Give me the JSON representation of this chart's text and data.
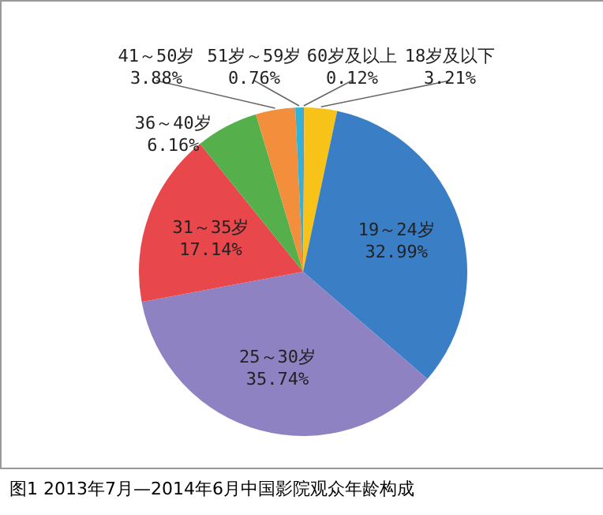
{
  "chart_data": {
    "type": "pie",
    "title": "图1 2013年7月—2014年6月中国影院观众年龄构成",
    "categories": [
      "60岁及以上",
      "18岁及以下",
      "19～24岁",
      "25～30岁",
      "31～35岁",
      "36～40岁",
      "41～50岁",
      "51岁～59岁"
    ],
    "values": [
      0.12,
      3.21,
      32.99,
      35.74,
      17.14,
      6.16,
      3.88,
      0.76
    ],
    "colors": [
      "#8c8c8c",
      "#f7c318",
      "#3a7fc6",
      "#8f82c2",
      "#e8474b",
      "#55b04b",
      "#f28e3c",
      "#2fb3d9"
    ],
    "value_labels": [
      "0.12%",
      "3.21%",
      "32.99%",
      "35.74%",
      "17.14%",
      "6.16%",
      "3.88%",
      "0.76%"
    ]
  }
}
